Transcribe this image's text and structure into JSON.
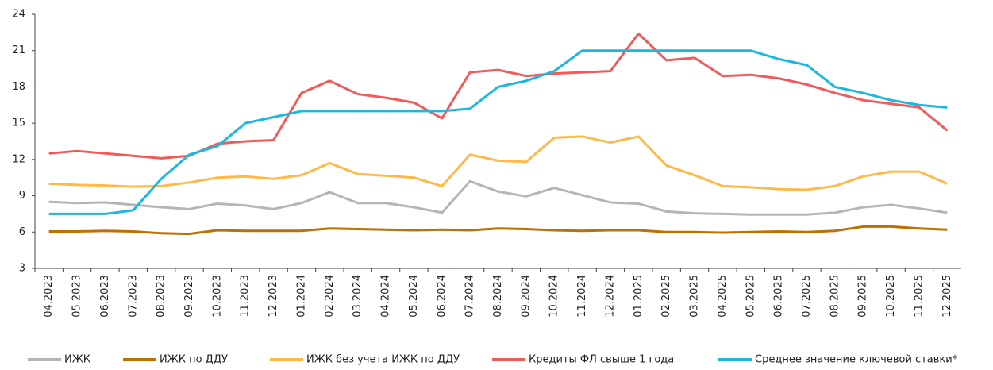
{
  "chart_data": {
    "type": "line",
    "categories": [
      "04.2023",
      "05.2023",
      "06.2023",
      "07.2023",
      "08.2023",
      "09.2023",
      "10.2023",
      "11.2023",
      "12.2023",
      "01.2024",
      "02.2024",
      "03.2024",
      "04.2024",
      "05.2024",
      "06.2024",
      "07.2024",
      "08.2024",
      "09.2024",
      "10.2024",
      "11.2024",
      "12.2024",
      "01.2025",
      "02.2025",
      "03.2025",
      "04.2025",
      "05.2025",
      "06.2025",
      "07.2025",
      "08.2025",
      "09.2025",
      "10.2025",
      "11.2025",
      "12.2025"
    ],
    "series": [
      {
        "name": "ИЖК",
        "color": "#b5b5b5",
        "values": [
          8.5,
          8.4,
          8.45,
          8.25,
          8.05,
          7.9,
          8.35,
          8.2,
          7.9,
          8.4,
          9.3,
          8.4,
          8.4,
          8.05,
          7.6,
          10.2,
          9.35,
          8.95,
          9.65,
          9.05,
          8.45,
          8.35,
          7.7,
          7.55,
          7.5,
          7.45,
          7.45,
          7.45,
          7.6,
          8.05,
          8.25,
          7.95,
          7.6
        ]
      },
      {
        "name": "ИЖК по ДДУ",
        "color": "#c07000",
        "values": [
          6.05,
          6.05,
          6.1,
          6.05,
          5.9,
          5.85,
          6.15,
          6.1,
          6.1,
          6.1,
          6.3,
          6.25,
          6.2,
          6.15,
          6.2,
          6.15,
          6.3,
          6.25,
          6.15,
          6.1,
          6.15,
          6.15,
          6.0,
          6.0,
          5.95,
          6.0,
          6.05,
          6.0,
          6.1,
          6.45,
          6.45,
          6.3,
          6.2
        ]
      },
      {
        "name": "ИЖК без учета ИЖК по ДДУ",
        "color": "#ffb94a",
        "values": [
          10,
          9.9,
          9.85,
          9.75,
          9.8,
          10.1,
          10.5,
          10.6,
          10.4,
          10.7,
          11.7,
          10.8,
          10.65,
          10.5,
          9.8,
          12.4,
          11.9,
          11.8,
          13.8,
          13.9,
          13.4,
          13.9,
          11.5,
          10.7,
          9.8,
          9.7,
          9.55,
          9.5,
          9.8,
          10.6,
          11,
          11,
          10
        ]
      },
      {
        "name": "Кредиты ФЛ свыше 1 года",
        "color": "#f25a5a",
        "values": [
          12.5,
          12.7,
          12.5,
          12.3,
          12.1,
          12.3,
          13.3,
          13.5,
          13.6,
          17.5,
          18.5,
          17.4,
          17.1,
          16.7,
          15.4,
          19.2,
          19.4,
          18.9,
          19.1,
          19.2,
          19.3,
          22.4,
          20.2,
          20.4,
          18.9,
          19,
          18.7,
          18.2,
          17.5,
          16.9,
          16.6,
          16.3,
          14.4
        ]
      },
      {
        "name": "Среднее значение ключевой ставки*",
        "color": "#1ab8e0",
        "values": [
          7.5,
          7.5,
          7.5,
          7.8,
          10.4,
          12.4,
          13.1,
          15,
          15.5,
          16,
          16,
          16,
          16,
          16,
          16,
          16.2,
          18,
          18.5,
          19.3,
          21,
          21,
          21,
          21,
          21,
          21,
          21,
          20.3,
          19.8,
          18,
          17.5,
          16.9,
          16.5,
          16.3
        ]
      }
    ],
    "ylim": [
      3,
      24
    ],
    "yticks": [
      3,
      6,
      9,
      12,
      15,
      18,
      21,
      24
    ],
    "grid": false,
    "legend": "bottom"
  }
}
